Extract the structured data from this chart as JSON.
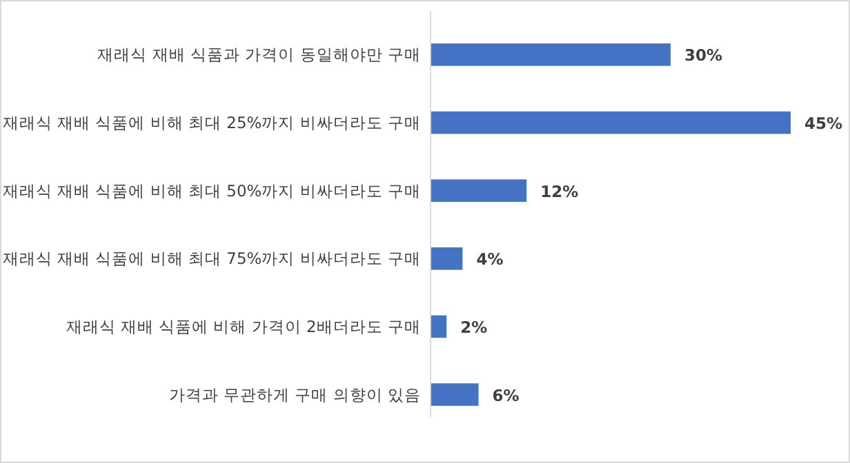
{
  "chart_data": {
    "type": "bar",
    "orientation": "horizontal",
    "color": "#4472c4",
    "categories": [
      "재래식 재배 식품과 가격이 동일해야만 구매",
      "재래식 재배 식품에 비해 최대 25%까지 비싸더라도 구매",
      "재래식 재배 식품에 비해 최대 50%까지 비싸더라도 구매",
      "재래식 재배 식품에 비해 최대 75%까지 비싸더라도 구매",
      "재래식 재배 식품에 비해 가격이 2배더라도 구매",
      "가격과 무관하게 구매 의향이 있음"
    ],
    "values": [
      30,
      45,
      12,
      4,
      2,
      6
    ],
    "value_labels": [
      "30%",
      "45%",
      "12%",
      "4%",
      "2%",
      "6%"
    ]
  }
}
